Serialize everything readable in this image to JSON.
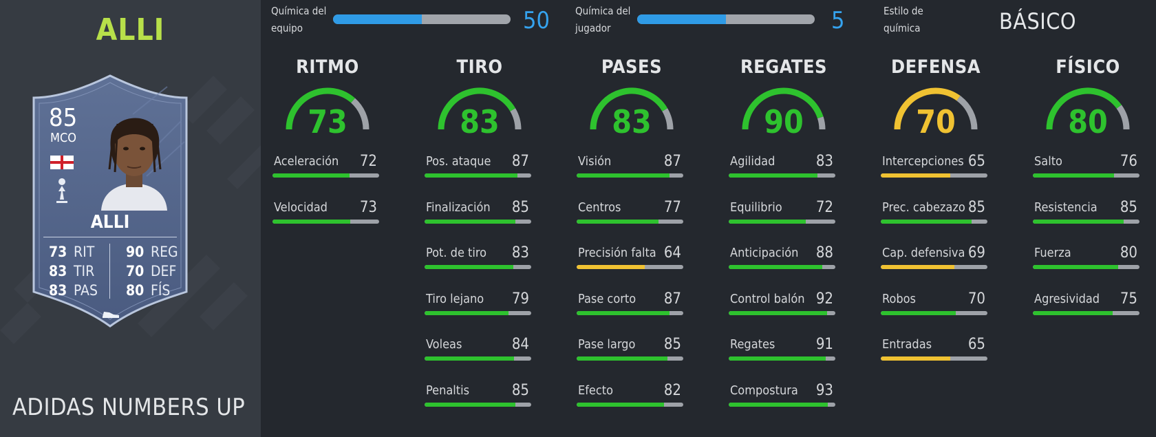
{
  "colors": {
    "green": "#2ec22e",
    "yellow": "#f0c232",
    "grey_track": "#9ea2a8",
    "chem_blue": "#2f9be6",
    "title_lime": "#b8e04a"
  },
  "player": {
    "title": "ALLI",
    "promo": "ADIDAS NUMBERS UP"
  },
  "card": {
    "rating": "85",
    "position": "MCO",
    "name": "ALLI",
    "nation_icon": "england-flag-icon",
    "club_icon": "tottenham-crest-icon",
    "stats": [
      {
        "value": "73",
        "label": "RIT"
      },
      {
        "value": "83",
        "label": "TIR"
      },
      {
        "value": "83",
        "label": "PAS"
      },
      {
        "value": "90",
        "label": "REG"
      },
      {
        "value": "70",
        "label": "DEF"
      },
      {
        "value": "80",
        "label": "FÍS"
      }
    ]
  },
  "chemistry": {
    "team_label_1": "Química del",
    "team_label_2": "equipo",
    "team_value": "50",
    "team_fill": 0.5,
    "player_label_1": "Química del",
    "player_label_2": "jugador",
    "player_value": "5",
    "player_fill": 0.5,
    "style_label_1": "Estilo de",
    "style_label_2": "química",
    "style_value": "BÁSICO"
  },
  "categories": [
    {
      "title": "RITMO",
      "value": "73",
      "rating": 73,
      "color": "green",
      "attributes": [
        {
          "name": "Aceleración",
          "value": 72
        },
        {
          "name": "Velocidad",
          "value": 73
        }
      ]
    },
    {
      "title": "TIRO",
      "value": "83",
      "rating": 83,
      "color": "green",
      "attributes": [
        {
          "name": "Pos. ataque",
          "value": 87
        },
        {
          "name": "Finalización",
          "value": 85
        },
        {
          "name": "Pot. de tiro",
          "value": 83
        },
        {
          "name": "Tiro lejano",
          "value": 79
        },
        {
          "name": "Voleas",
          "value": 84
        },
        {
          "name": "Penaltis",
          "value": 85
        }
      ]
    },
    {
      "title": "PASES",
      "value": "83",
      "rating": 83,
      "color": "green",
      "attributes": [
        {
          "name": "Visión",
          "value": 87
        },
        {
          "name": "Centros",
          "value": 77
        },
        {
          "name": "Precisión falta",
          "value": 64
        },
        {
          "name": "Pase corto",
          "value": 87
        },
        {
          "name": "Pase largo",
          "value": 85
        },
        {
          "name": "Efecto",
          "value": 82
        }
      ]
    },
    {
      "title": "REGATES",
      "value": "90",
      "rating": 90,
      "color": "green",
      "attributes": [
        {
          "name": "Agilidad",
          "value": 83
        },
        {
          "name": "Equilibrio",
          "value": 72
        },
        {
          "name": "Anticipación",
          "value": 88
        },
        {
          "name": "Control balón",
          "value": 92
        },
        {
          "name": "Regates",
          "value": 91
        },
        {
          "name": "Compostura",
          "value": 93
        }
      ]
    },
    {
      "title": "DEFENSA",
      "value": "70",
      "rating": 70,
      "color": "yellow",
      "attributes": [
        {
          "name": "Intercepciones",
          "value": 65
        },
        {
          "name": "Prec. cabezazo",
          "value": 85
        },
        {
          "name": "Cap. defensiva",
          "value": 69
        },
        {
          "name": "Robos",
          "value": 70
        },
        {
          "name": "Entradas",
          "value": 65
        }
      ]
    },
    {
      "title": "FÍSICO",
      "value": "80",
      "rating": 80,
      "color": "green",
      "attributes": [
        {
          "name": "Salto",
          "value": 76
        },
        {
          "name": "Resistencia",
          "value": 85
        },
        {
          "name": "Fuerza",
          "value": 80
        },
        {
          "name": "Agresividad",
          "value": 75
        }
      ]
    }
  ]
}
